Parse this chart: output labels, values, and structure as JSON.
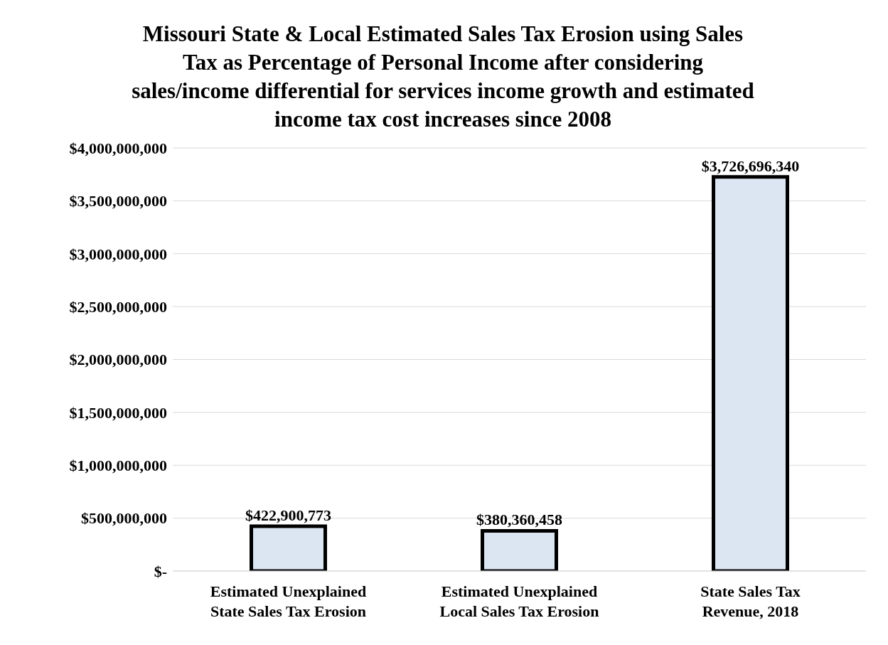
{
  "chart_data": {
    "type": "bar",
    "title": "Missouri State & Local Estimated Sales Tax Erosion using Sales Tax as Percentage of Personal Income after considering sales/income differential for services income growth and estimated income tax cost increases since 2008",
    "categories": [
      "Estimated Unexplained State Sales Tax Erosion",
      "Estimated Unexplained Local Sales Tax Erosion",
      "State Sales Tax Revenue, 2018"
    ],
    "values": [
      422900773,
      380360458,
      3726696340
    ],
    "value_labels": [
      "$422,900,773",
      "$380,360,458",
      "$3,726,696,340"
    ],
    "color": "#dce6f2",
    "ylim": [
      0,
      4000000000
    ],
    "yticks": [
      {
        "value": 0,
        "label": "$-"
      },
      {
        "value": 500000000,
        "label": "$500,000,000"
      },
      {
        "value": 1000000000,
        "label": "$1,000,000,000"
      },
      {
        "value": 1500000000,
        "label": "$1,500,000,000"
      },
      {
        "value": 2000000000,
        "label": "$2,000,000,000"
      },
      {
        "value": 2500000000,
        "label": "$2,500,000,000"
      },
      {
        "value": 3000000000,
        "label": "$3,000,000,000"
      },
      {
        "value": 3500000000,
        "label": "$3,500,000,000"
      },
      {
        "value": 4000000000,
        "label": "$4,000,000,000"
      }
    ],
    "grid": "y"
  }
}
